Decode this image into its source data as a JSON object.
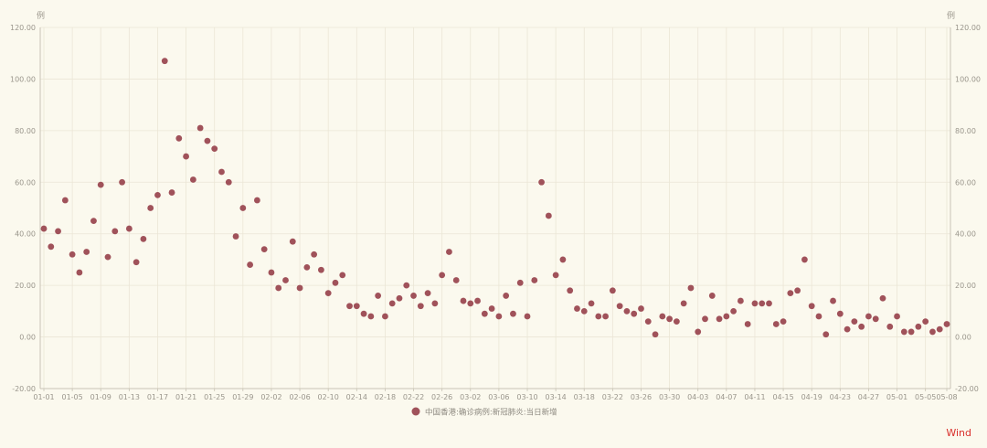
{
  "chart_data": {
    "type": "scatter",
    "y_unit_left": "例",
    "y_unit_right": "例",
    "ylim": [
      -20,
      120
    ],
    "y_ticks": [
      "-20.00",
      "0.00",
      "20.00",
      "40.00",
      "60.00",
      "80.00",
      "100.00",
      "120.00"
    ],
    "x_tick_labels": [
      "01-01",
      "01-05",
      "01-09",
      "01-13",
      "01-17",
      "01-21",
      "01-25",
      "01-29",
      "02-02",
      "02-06",
      "02-10",
      "02-14",
      "02-18",
      "02-22",
      "02-26",
      "03-02",
      "03-06",
      "03-10",
      "03-14",
      "03-18",
      "03-22",
      "03-26",
      "03-30",
      "04-03",
      "04-07",
      "04-11",
      "04-15",
      "04-19",
      "04-23",
      "04-27",
      "05-01",
      "05-05",
      "05-08"
    ],
    "grid": true,
    "legend_position": "bottom-center",
    "series": [
      {
        "name": "中国香港:确诊病例:新冠肺炎:当日新增",
        "color": "#a0525a",
        "points": [
          [
            "01-01",
            42
          ],
          [
            "01-02",
            35
          ],
          [
            "01-03",
            41
          ],
          [
            "01-04",
            53
          ],
          [
            "01-05",
            32
          ],
          [
            "01-06",
            25
          ],
          [
            "01-07",
            33
          ],
          [
            "01-08",
            45
          ],
          [
            "01-09",
            59
          ],
          [
            "01-10",
            31
          ],
          [
            "01-11",
            41
          ],
          [
            "01-12",
            60
          ],
          [
            "01-13",
            42
          ],
          [
            "01-14",
            29
          ],
          [
            "01-15",
            38
          ],
          [
            "01-16",
            50
          ],
          [
            "01-17",
            55
          ],
          [
            "01-18",
            107
          ],
          [
            "01-19",
            56
          ],
          [
            "01-20",
            77
          ],
          [
            "01-21",
            70
          ],
          [
            "01-22",
            61
          ],
          [
            "01-23",
            81
          ],
          [
            "01-24",
            76
          ],
          [
            "01-25",
            73
          ],
          [
            "01-26",
            64
          ],
          [
            "01-27",
            60
          ],
          [
            "01-28",
            39
          ],
          [
            "01-29",
            50
          ],
          [
            "01-30",
            28
          ],
          [
            "01-31",
            53
          ],
          [
            "02-01",
            34
          ],
          [
            "02-02",
            25
          ],
          [
            "02-03",
            19
          ],
          [
            "02-04",
            22
          ],
          [
            "02-05",
            37
          ],
          [
            "02-06",
            19
          ],
          [
            "02-07",
            27
          ],
          [
            "02-08",
            32
          ],
          [
            "02-09",
            26
          ],
          [
            "02-10",
            17
          ],
          [
            "02-11",
            21
          ],
          [
            "02-12",
            24
          ],
          [
            "02-13",
            12
          ],
          [
            "02-14",
            12
          ],
          [
            "02-15",
            9
          ],
          [
            "02-16",
            8
          ],
          [
            "02-17",
            16
          ],
          [
            "02-18",
            8
          ],
          [
            "02-19",
            13
          ],
          [
            "02-20",
            15
          ],
          [
            "02-21",
            20
          ],
          [
            "02-22",
            16
          ],
          [
            "02-23",
            12
          ],
          [
            "02-24",
            17
          ],
          [
            "02-25",
            13
          ],
          [
            "02-26",
            24
          ],
          [
            "02-27",
            33
          ],
          [
            "02-28",
            22
          ],
          [
            "03-01",
            14
          ],
          [
            "03-02",
            13
          ],
          [
            "03-03",
            14
          ],
          [
            "03-04",
            9
          ],
          [
            "03-05",
            11
          ],
          [
            "03-06",
            8
          ],
          [
            "03-07",
            16
          ],
          [
            "03-08",
            9
          ],
          [
            "03-09",
            21
          ],
          [
            "03-10",
            8
          ],
          [
            "03-11",
            22
          ],
          [
            "03-12",
            60
          ],
          [
            "03-13",
            47
          ],
          [
            "03-14",
            24
          ],
          [
            "03-15",
            30
          ],
          [
            "03-16",
            18
          ],
          [
            "03-17",
            11
          ],
          [
            "03-18",
            10
          ],
          [
            "03-19",
            13
          ],
          [
            "03-20",
            8
          ],
          [
            "03-21",
            8
          ],
          [
            "03-22",
            18
          ],
          [
            "03-23",
            12
          ],
          [
            "03-24",
            10
          ],
          [
            "03-25",
            9
          ],
          [
            "03-26",
            11
          ],
          [
            "03-27",
            6
          ],
          [
            "03-28",
            1
          ],
          [
            "03-29",
            8
          ],
          [
            "03-30",
            7
          ],
          [
            "03-31",
            6
          ],
          [
            "04-01",
            13
          ],
          [
            "04-02",
            19
          ],
          [
            "04-03",
            2
          ],
          [
            "04-04",
            7
          ],
          [
            "04-05",
            16
          ],
          [
            "04-06",
            7
          ],
          [
            "04-07",
            8
          ],
          [
            "04-08",
            10
          ],
          [
            "04-09",
            14
          ],
          [
            "04-10",
            5
          ],
          [
            "04-11",
            13
          ],
          [
            "04-12",
            13
          ],
          [
            "04-13",
            13
          ],
          [
            "04-14",
            5
          ],
          [
            "04-15",
            6
          ],
          [
            "04-16",
            17
          ],
          [
            "04-17",
            18
          ],
          [
            "04-18",
            30
          ],
          [
            "04-19",
            12
          ],
          [
            "04-20",
            8
          ],
          [
            "04-21",
            1
          ],
          [
            "04-22",
            14
          ],
          [
            "04-23",
            9
          ],
          [
            "04-24",
            3
          ],
          [
            "04-25",
            6
          ],
          [
            "04-26",
            4
          ],
          [
            "04-27",
            8
          ],
          [
            "04-28",
            7
          ],
          [
            "04-29",
            15
          ],
          [
            "04-30",
            4
          ],
          [
            "05-01",
            8
          ],
          [
            "05-02",
            2
          ],
          [
            "05-03",
            2
          ],
          [
            "05-04",
            4
          ],
          [
            "05-05",
            6
          ],
          [
            "05-06",
            2
          ],
          [
            "05-07",
            3
          ],
          [
            "05-08",
            5
          ]
        ]
      }
    ]
  },
  "watermark": {
    "text": "Wind",
    "color": "#d9302c"
  }
}
